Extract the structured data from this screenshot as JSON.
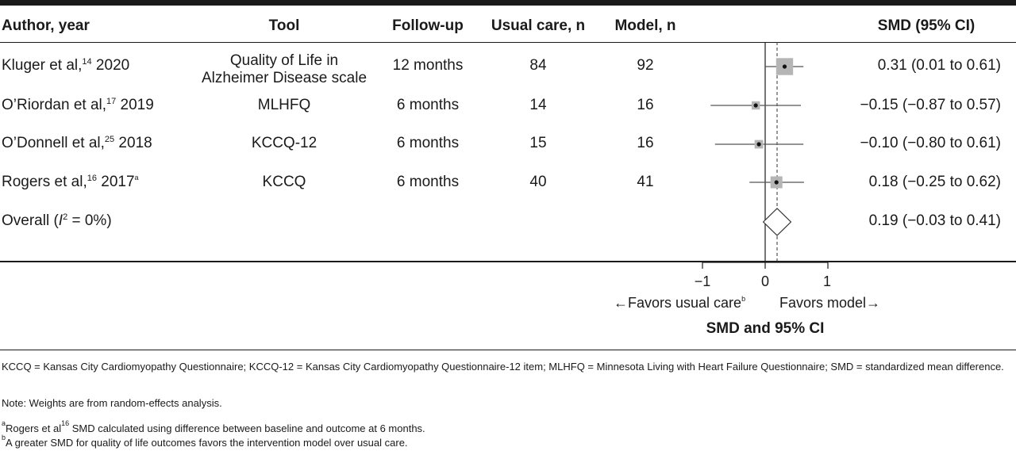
{
  "headers": {
    "author": "Author, year",
    "tool": "Tool",
    "followup": "Follow-up",
    "usual": "Usual care, n",
    "model": "Model, n",
    "smd": "SMD (95% CI)"
  },
  "rows": [
    {
      "author": "Kluger et al,",
      "ref": "14",
      "year": " 2020",
      "note": "",
      "tool_line1": "Quality of Life in",
      "tool_line2": "Alzheimer Disease scale",
      "followup": "12 months",
      "usual_n": "84",
      "model_n": "92",
      "ci_text": "0.31 (0.01 to 0.61)"
    },
    {
      "author": "O’Riordan et al,",
      "ref": "17",
      "year": " 2019",
      "note": "",
      "tool_line1": "MLHFQ",
      "tool_line2": "",
      "followup": "6 months",
      "usual_n": "14",
      "model_n": "16",
      "ci_text": "−0.15 (−0.87 to 0.57)"
    },
    {
      "author": "O’Donnell et al,",
      "ref": "25",
      "year": " 2018",
      "note": "",
      "tool_line1": "KCCQ-12",
      "tool_line2": "",
      "followup": "6 months",
      "usual_n": "15",
      "model_n": "16",
      "ci_text": "−0.10 (−0.80 to 0.61)"
    },
    {
      "author": "Rogers et al,",
      "ref": "16",
      "year": " 2017",
      "note": "a",
      "tool_line1": "KCCQ",
      "tool_line2": "",
      "followup": "6 months",
      "usual_n": "40",
      "model_n": "41",
      "ci_text": "0.18 (−0.25 to 0.62)"
    }
  ],
  "overall": {
    "prefix": "Overall (",
    "i": "I",
    "sup": "2",
    "suffix": " = 0%)",
    "ci_text": "0.19 (−0.03 to 0.41)"
  },
  "chart_data": {
    "type": "forest",
    "xlabel": "SMD and 95% CI",
    "xlim": [
      -1,
      1
    ],
    "ticks": [
      "−1",
      "0",
      "1"
    ],
    "favors_left": "←Favors usual care",
    "favors_left_sup": "b",
    "favors_right": "Favors model→",
    "studies": [
      {
        "estimate": 0.31,
        "lower": 0.01,
        "upper": 0.61,
        "weight": 0.73
      },
      {
        "estimate": -0.15,
        "lower": -0.87,
        "upper": 0.57,
        "weight": 0.06
      },
      {
        "estimate": -0.1,
        "lower": -0.8,
        "upper": 0.61,
        "weight": 0.07
      },
      {
        "estimate": 0.18,
        "lower": -0.25,
        "upper": 0.62,
        "weight": 0.25
      }
    ],
    "pooled": {
      "estimate": 0.19,
      "lower": -0.03,
      "upper": 0.41
    }
  },
  "footnotes": {
    "abbrev": "KCCQ = Kansas City Cardiomyopathy Questionnaire; KCCQ-12 = Kansas City Cardiomyopathy Questionnaire-12 item; MLHFQ = Minnesota Living with Heart Failure Questionnaire; SMD = standardized mean difference.",
    "note": "Note: Weights are from random-effects analysis.",
    "a_mark": "a",
    "a_text1": "Rogers et al",
    "a_ref": "16",
    "a_text2": " SMD calculated using difference between baseline and outcome at 6 months.",
    "b_mark": "b",
    "b_text": "A greater SMD for quality of life outcomes favors the intervention model over usual care."
  }
}
